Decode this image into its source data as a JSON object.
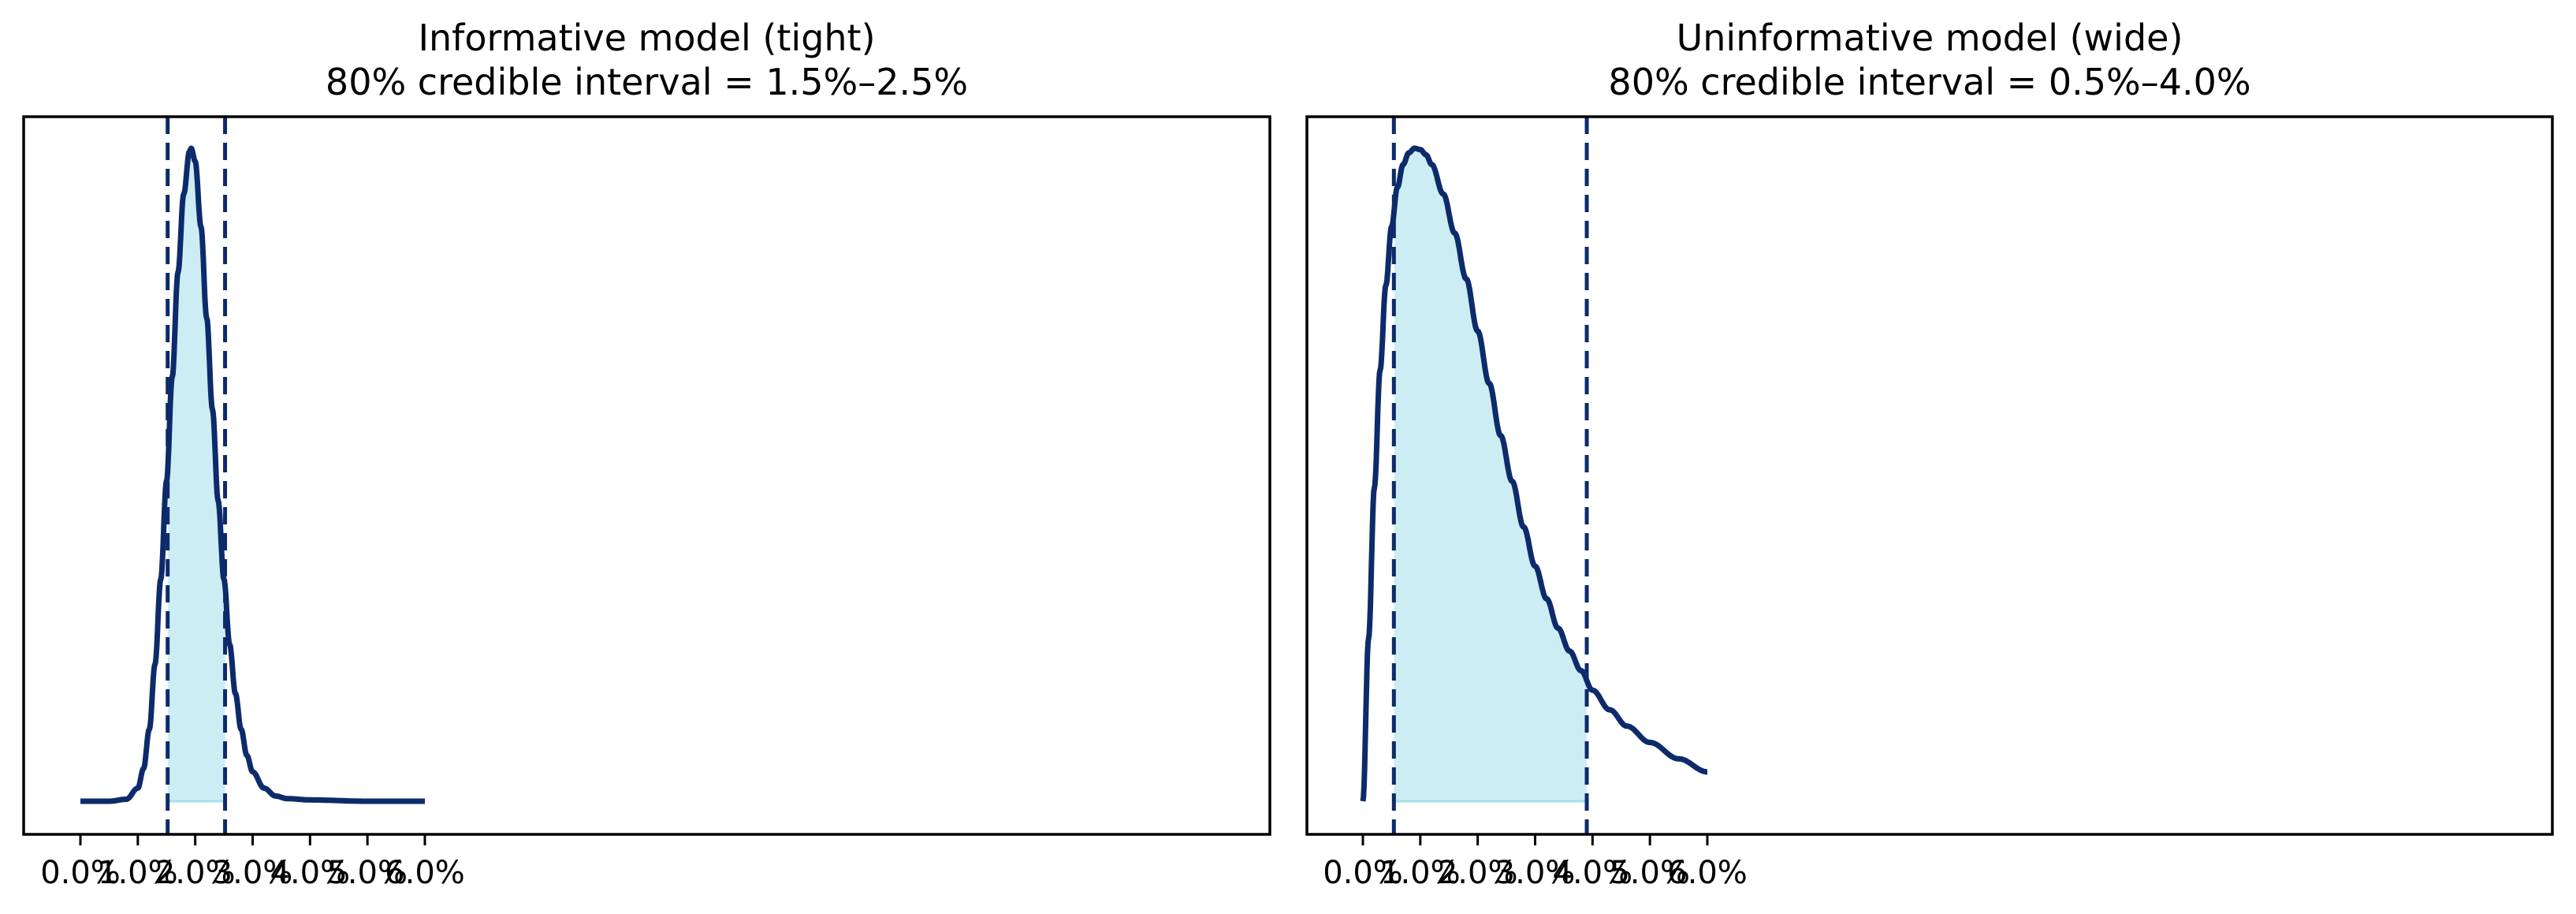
{
  "colors": {
    "curve": "#0d2b6b",
    "fill": "#cdedf4",
    "fill_edge": "#a6dfea",
    "frame": "#000000"
  },
  "panels": [
    {
      "title_line1": "Informative model (tight)",
      "title_line2": "80% credible interval = 1.5%–2.5%"
    },
    {
      "title_line1": "Uninformative model (wide)",
      "title_line2": "80% credible interval = 0.5%–4.0%"
    }
  ],
  "chart_data": [
    {
      "type": "area",
      "title": "Informative model (tight)\n80% credible interval = 1.5%–2.5%",
      "xlabel": "",
      "ylabel": "",
      "xlim": [
        -0.0045,
        0.0635
      ],
      "ylim": [
        -0.06,
        1.05
      ],
      "xticks": [
        0.0,
        0.01,
        0.02,
        0.03,
        0.04,
        0.05,
        0.06
      ],
      "xtick_labels": [
        "0.0%",
        "1.0%",
        "2.0%",
        "3.0%",
        "4.0%",
        "5.0%",
        "6.0%"
      ],
      "yticks": [],
      "grid": false,
      "interval": {
        "low": 0.0152,
        "high": 0.0252,
        "label": "80% credible interval"
      },
      "x": [
        0.0,
        0.005,
        0.008,
        0.01,
        0.011,
        0.012,
        0.013,
        0.014,
        0.015,
        0.016,
        0.017,
        0.018,
        0.019,
        0.0193,
        0.02,
        0.021,
        0.022,
        0.023,
        0.024,
        0.025,
        0.026,
        0.027,
        0.028,
        0.029,
        0.03,
        0.032,
        0.034,
        0.036,
        0.04,
        0.05,
        0.06
      ],
      "density_relative": [
        0.0,
        0.0,
        0.003,
        0.02,
        0.05,
        0.11,
        0.21,
        0.34,
        0.49,
        0.65,
        0.81,
        0.93,
        0.995,
        1.0,
        0.98,
        0.88,
        0.74,
        0.6,
        0.46,
        0.34,
        0.24,
        0.165,
        0.11,
        0.07,
        0.045,
        0.02,
        0.008,
        0.004,
        0.002,
        0.0,
        0.0
      ]
    },
    {
      "type": "area",
      "title": "Uninformative model (wide)\n80% credible interval = 0.5%–4.0%",
      "xlabel": "",
      "ylabel": "",
      "xlim": [
        -0.0045,
        0.0635
      ],
      "ylim": [
        -0.06,
        1.05
      ],
      "xticks": [
        0.0,
        0.01,
        0.02,
        0.03,
        0.04,
        0.05,
        0.06
      ],
      "xtick_labels": [
        "0.0%",
        "1.0%",
        "2.0%",
        "3.0%",
        "4.0%",
        "5.0%",
        "6.0%"
      ],
      "yticks": [],
      "grid": false,
      "interval": {
        "low": 0.0054,
        "high": 0.039,
        "label": "80% credible interval"
      },
      "x": [
        0.0,
        0.001,
        0.002,
        0.003,
        0.004,
        0.005,
        0.006,
        0.007,
        0.008,
        0.009,
        0.01,
        0.011,
        0.012,
        0.014,
        0.016,
        0.018,
        0.02,
        0.022,
        0.024,
        0.026,
        0.028,
        0.03,
        0.032,
        0.034,
        0.036,
        0.038,
        0.04,
        0.043,
        0.046,
        0.05,
        0.055,
        0.06
      ],
      "density_relative": [
        0.0,
        0.25,
        0.48,
        0.66,
        0.79,
        0.88,
        0.94,
        0.975,
        0.993,
        1.0,
        0.998,
        0.99,
        0.975,
        0.93,
        0.87,
        0.8,
        0.72,
        0.64,
        0.56,
        0.49,
        0.42,
        0.36,
        0.31,
        0.265,
        0.23,
        0.2,
        0.17,
        0.14,
        0.115,
        0.09,
        0.065,
        0.045
      ]
    }
  ]
}
